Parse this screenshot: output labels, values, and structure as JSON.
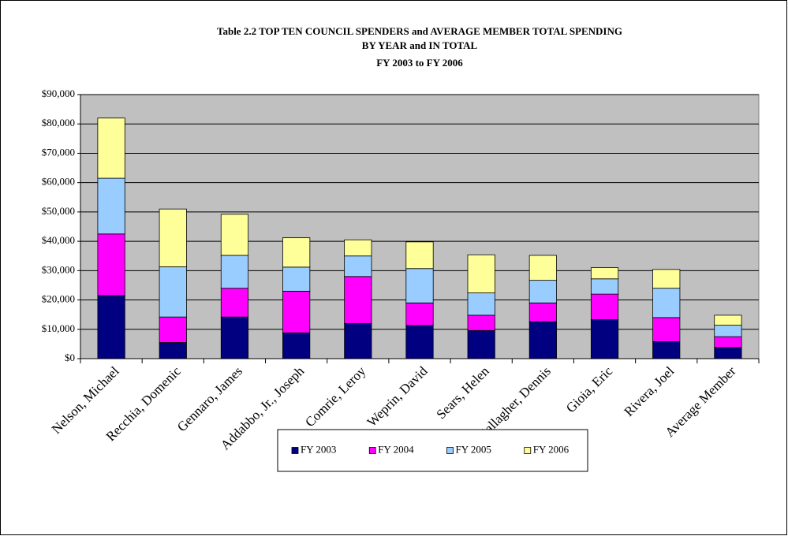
{
  "chart_data": {
    "type": "stacked_bar",
    "title": [
      "Table 2.2 TOP TEN COUNCIL SPENDERS and AVERAGE MEMBER TOTAL SPENDING",
      "BY YEAR and IN TOTAL",
      "FY 2003 to FY 2006"
    ],
    "categories": [
      "Nelson, Michael",
      "Recchia, Domenic",
      "Gennaro, James",
      "Addabbo, Jr., Joseph",
      "Comrie, Leroy",
      "Weprin, David",
      "Sears, Helen",
      "Gallagher, Dennis",
      "Gioia, Eric",
      "Rivera, Joel",
      "Average Member"
    ],
    "series": [
      {
        "name": "FY 2003",
        "color": "#000080",
        "values": [
          21500,
          5500,
          14200,
          8800,
          12000,
          11300,
          9600,
          12600,
          13300,
          5800,
          3800
        ]
      },
      {
        "name": "FY 2004",
        "color": "#ff00ff",
        "values": [
          21000,
          8700,
          9800,
          14200,
          16000,
          7700,
          5200,
          6400,
          8700,
          8200,
          3700
        ]
      },
      {
        "name": "FY 2005",
        "color": "#99ccff",
        "values": [
          19000,
          17100,
          11200,
          8200,
          7000,
          11700,
          7600,
          7700,
          5200,
          10000,
          3900
        ]
      },
      {
        "name": "FY 2006",
        "color": "#ffff99",
        "values": [
          20500,
          19700,
          14000,
          10000,
          5500,
          9100,
          13000,
          8500,
          3800,
          6400,
          3400
        ]
      }
    ],
    "ylim": [
      0,
      90000
    ],
    "yticks": [
      {
        "value": 0,
        "label": "$0"
      },
      {
        "value": 10000,
        "label": "$10,000"
      },
      {
        "value": 20000,
        "label": "$20,000"
      },
      {
        "value": 30000,
        "label": "$30,000"
      },
      {
        "value": 40000,
        "label": "$40,000"
      },
      {
        "value": 50000,
        "label": "$50,000"
      },
      {
        "value": 60000,
        "label": "$60,000"
      },
      {
        "value": 70000,
        "label": "$70,000"
      },
      {
        "value": 80000,
        "label": "$80,000"
      },
      {
        "value": 90000,
        "label": "$90,000"
      }
    ],
    "grid": true,
    "plot_background": "#c0c0c0",
    "legend": "bottom"
  }
}
